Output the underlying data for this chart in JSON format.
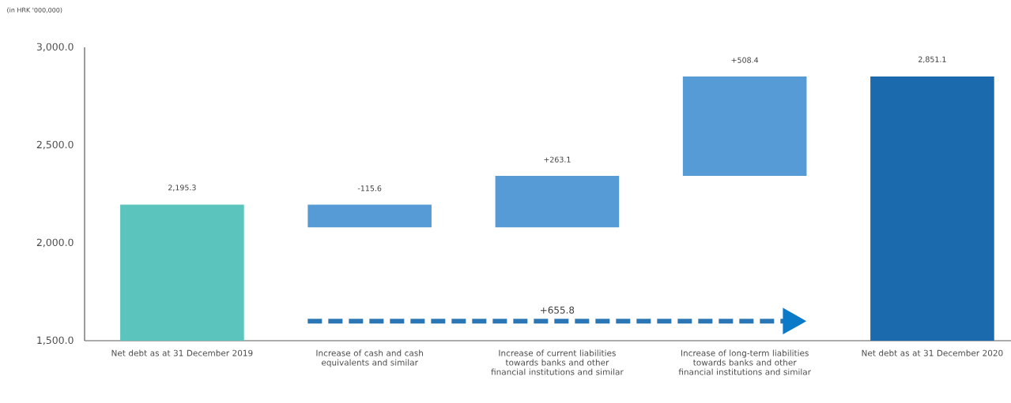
{
  "chart_data": {
    "type": "bar",
    "ylabel": "(in HRK '000,000)",
    "categories": [
      "Net debt as at 31 December 2019",
      "Increase of cash and cash equivalents and similar",
      "Increase of current liabilities towards banks and other financial institutions and similar",
      "Increase of long-term liabilities towards banks and other financial institutions and similar",
      "Net debt as at 31 December 2020"
    ],
    "base": [
      1500,
      2195.3,
      2079.7,
      2342.8,
      1500
    ],
    "values": [
      695.3,
      -115.6,
      263.1,
      508.4,
      1351.1
    ],
    "value_labels": [
      "2,195.3",
      "-115.6",
      "+263.1",
      "+508.4",
      "2,851.1"
    ],
    "colors": [
      "#5bc4bd",
      "#569bd5",
      "#569bd5",
      "#569bd5",
      "#1a6aad"
    ],
    "ylim": [
      1500,
      3000
    ],
    "yticks": [
      {
        "value": 1500,
        "label": "1,500.0"
      },
      {
        "value": 2000,
        "label": "2,000.0"
      },
      {
        "value": 2500,
        "label": "2,500.0"
      },
      {
        "value": 3000,
        "label": "3,000.0"
      }
    ],
    "annotations": [
      "+655.8"
    ]
  }
}
